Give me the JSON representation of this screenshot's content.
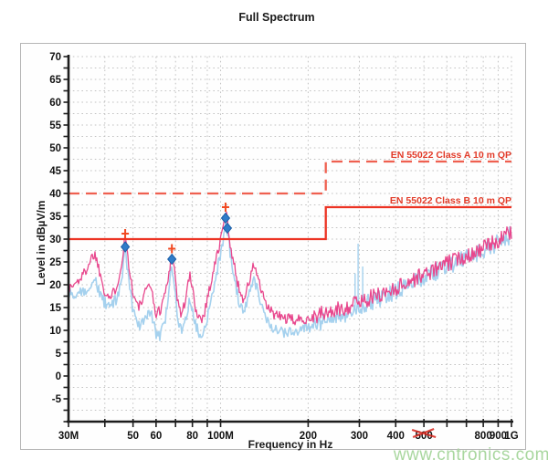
{
  "title": "Full Spectrum",
  "watermark": "www.cntronics.com",
  "colors": {
    "trace_pink": "#e8478d",
    "trace_blue": "#a5d1ee",
    "limit_solid": "#ec3323",
    "limit_dashed": "#ef6050",
    "annotation": "#e23a28",
    "marker_cross": "#f14a22",
    "marker_diamond": "#2f7cc9",
    "grid": "#c2c2c2",
    "axis": "#1c1c1c",
    "tick_text": "#111111",
    "scribble": "#d8251b",
    "watermark": "#a9d79f"
  },
  "chart_data": {
    "type": "line",
    "title": "Full Spectrum",
    "xlabel": "Frequency in Hz",
    "ylabel": "Level in dBµV/m",
    "x_scale": "log",
    "x_range_mhz": [
      30,
      1000
    ],
    "ylim": [
      -10,
      70
    ],
    "y_label_step": 5,
    "y_minor_step": 2.5,
    "grid": "dotted",
    "legend_position": "none",
    "x_ticks_mhz": [
      30,
      40,
      50,
      60,
      70,
      80,
      90,
      100,
      200,
      300,
      400,
      500,
      600,
      700,
      800,
      900,
      1000
    ],
    "x_tick_labels": [
      {
        "mhz": 30,
        "label": "30M"
      },
      {
        "mhz": 50,
        "label": "50"
      },
      {
        "mhz": 60,
        "label": "60"
      },
      {
        "mhz": 80,
        "label": "80"
      },
      {
        "mhz": 100,
        "label": "100M"
      },
      {
        "mhz": 200,
        "label": "200"
      },
      {
        "mhz": 300,
        "label": "300"
      },
      {
        "mhz": 400,
        "label": "400"
      },
      {
        "mhz": 500,
        "label": "500",
        "red_scribble": true
      },
      {
        "mhz": 800,
        "label": "800"
      },
      {
        "mhz": 900,
        "label": "900"
      },
      {
        "mhz": 1000,
        "label": "1G"
      }
    ],
    "limit_lines": [
      {
        "label": "EN 55022 Class A 10 m QP",
        "style": "dashed",
        "points_mhz_db": [
          [
            30,
            40
          ],
          [
            230,
            40
          ],
          [
            230,
            47
          ],
          [
            1000,
            47
          ]
        ]
      },
      {
        "label": "EN 55022 Class B 10 m QP",
        "style": "solid",
        "points_mhz_db": [
          [
            30,
            30
          ],
          [
            230,
            30
          ],
          [
            230,
            37
          ],
          [
            1000,
            37
          ]
        ]
      }
    ],
    "series": [
      {
        "name": "peak-trace-blue",
        "jitter_db": 1.3,
        "points_mhz_db": [
          [
            30,
            18
          ],
          [
            32,
            17.5
          ],
          [
            34,
            18.5
          ],
          [
            36,
            20.5
          ],
          [
            37,
            21
          ],
          [
            38,
            19
          ],
          [
            40,
            16
          ],
          [
            42,
            15
          ],
          [
            44,
            17
          ],
          [
            45.5,
            20
          ],
          [
            47,
            27.8
          ],
          [
            48.5,
            20
          ],
          [
            50,
            14
          ],
          [
            52,
            11
          ],
          [
            54,
            12
          ],
          [
            56,
            13.5
          ],
          [
            57,
            14.5
          ],
          [
            58.5,
            12
          ],
          [
            60,
            9.5
          ],
          [
            62,
            9
          ],
          [
            64,
            11.5
          ],
          [
            66,
            16
          ],
          [
            68,
            25
          ],
          [
            69.5,
            19
          ],
          [
            71,
            13
          ],
          [
            73,
            10
          ],
          [
            75,
            11.5
          ],
          [
            77,
            14.5
          ],
          [
            78.5,
            17
          ],
          [
            80,
            15
          ],
          [
            82,
            11.5
          ],
          [
            84,
            9.5
          ],
          [
            86,
            9
          ],
          [
            88,
            10.5
          ],
          [
            90,
            13
          ],
          [
            93,
            17
          ],
          [
            96,
            21.5
          ],
          [
            99,
            25.5
          ],
          [
            102,
            29.5
          ],
          [
            104,
            34.2
          ],
          [
            106,
            31
          ],
          [
            108,
            27
          ],
          [
            110,
            24
          ],
          [
            113,
            19.5
          ],
          [
            116,
            16
          ],
          [
            119,
            14
          ],
          [
            122,
            15
          ],
          [
            126,
            18
          ],
          [
            130,
            21.5
          ],
          [
            134,
            19
          ],
          [
            138,
            15.5
          ],
          [
            142,
            13
          ],
          [
            147,
            11.5
          ],
          [
            153,
            10.5
          ],
          [
            160,
            10
          ],
          [
            170,
            9.5
          ],
          [
            180,
            9.5
          ],
          [
            190,
            10
          ],
          [
            200,
            10.8
          ],
          [
            212,
            11.5
          ],
          [
            225,
            12
          ],
          [
            240,
            12.6
          ],
          [
            255,
            13.2
          ],
          [
            270,
            13.8
          ],
          [
            285,
            14.6
          ],
          [
            300,
            15.3
          ],
          [
            315,
            15.9
          ],
          [
            330,
            16.4
          ],
          [
            350,
            17
          ],
          [
            370,
            17.6
          ],
          [
            390,
            18.3
          ],
          [
            410,
            18.9
          ],
          [
            430,
            19.5
          ],
          [
            455,
            20.3
          ],
          [
            480,
            21.1
          ],
          [
            510,
            21.9
          ],
          [
            540,
            22.6
          ],
          [
            570,
            23.4
          ],
          [
            600,
            24
          ],
          [
            640,
            24.8
          ],
          [
            680,
            25.5
          ],
          [
            720,
            26.2
          ],
          [
            760,
            26.9
          ],
          [
            800,
            27.5
          ],
          [
            840,
            28.2
          ],
          [
            880,
            28.9
          ],
          [
            920,
            29.6
          ],
          [
            960,
            30.3
          ],
          [
            1000,
            31
          ]
        ],
        "spikes_mhz_db": [
          [
            290,
            22.5
          ],
          [
            297,
            29
          ],
          [
            308,
            24
          ]
        ]
      },
      {
        "name": "qp-trace-pink",
        "jitter_db": 1.2,
        "points_mhz_db": [
          [
            30,
            19
          ],
          [
            32,
            20.5
          ],
          [
            34,
            22.5
          ],
          [
            36,
            26
          ],
          [
            37,
            26.8
          ],
          [
            38,
            24
          ],
          [
            40,
            18.5
          ],
          [
            42,
            17
          ],
          [
            44,
            20
          ],
          [
            45.5,
            24
          ],
          [
            47,
            30.8
          ],
          [
            48.5,
            24
          ],
          [
            50,
            18
          ],
          [
            52,
            15
          ],
          [
            54,
            16.5
          ],
          [
            56,
            19.5
          ],
          [
            57,
            21
          ],
          [
            58.5,
            17
          ],
          [
            60,
            13.5
          ],
          [
            62,
            14.5
          ],
          [
            64,
            17.5
          ],
          [
            66,
            21
          ],
          [
            68,
            27.5
          ],
          [
            69.5,
            23
          ],
          [
            71,
            17
          ],
          [
            73,
            13.5
          ],
          [
            75,
            15.5
          ],
          [
            77,
            19.5
          ],
          [
            78.5,
            22
          ],
          [
            80,
            19
          ],
          [
            82,
            15
          ],
          [
            84,
            13
          ],
          [
            86,
            12.5
          ],
          [
            88,
            14
          ],
          [
            90,
            17
          ],
          [
            93,
            21
          ],
          [
            96,
            25
          ],
          [
            99,
            28.5
          ],
          [
            102,
            32.5
          ],
          [
            104,
            36.4
          ],
          [
            106,
            33
          ],
          [
            108,
            29
          ],
          [
            110,
            26
          ],
          [
            113,
            22
          ],
          [
            116,
            19
          ],
          [
            119,
            17
          ],
          [
            122,
            18
          ],
          [
            126,
            21
          ],
          [
            130,
            24.5
          ],
          [
            134,
            22
          ],
          [
            138,
            18.5
          ],
          [
            142,
            16
          ],
          [
            147,
            14.5
          ],
          [
            153,
            13.5
          ],
          [
            160,
            13
          ],
          [
            170,
            12.5
          ],
          [
            180,
            12.2
          ],
          [
            190,
            12.3
          ],
          [
            200,
            12.8
          ],
          [
            212,
            13.2
          ],
          [
            225,
            13.6
          ],
          [
            240,
            14
          ],
          [
            255,
            14.5
          ],
          [
            270,
            15
          ],
          [
            285,
            15.8
          ],
          [
            300,
            16.3
          ],
          [
            315,
            16.8
          ],
          [
            330,
            17.2
          ],
          [
            350,
            17.8
          ],
          [
            370,
            18.4
          ],
          [
            390,
            19
          ],
          [
            410,
            19.6
          ],
          [
            430,
            20.2
          ],
          [
            455,
            21
          ],
          [
            480,
            21.8
          ],
          [
            510,
            22.5
          ],
          [
            540,
            23.2
          ],
          [
            570,
            24
          ],
          [
            600,
            24.6
          ],
          [
            640,
            25.4
          ],
          [
            680,
            26.1
          ],
          [
            720,
            26.8
          ],
          [
            760,
            27.4
          ],
          [
            800,
            28
          ],
          [
            840,
            28.7
          ],
          [
            880,
            29.4
          ],
          [
            920,
            30.1
          ],
          [
            960,
            30.8
          ],
          [
            1000,
            31.5
          ]
        ],
        "spikes_mhz_db": []
      }
    ],
    "markers": [
      {
        "shape": "cross",
        "mhz": 47,
        "db": 31.2
      },
      {
        "shape": "diamond",
        "mhz": 47,
        "db": 28.3
      },
      {
        "shape": "cross",
        "mhz": 68,
        "db": 27.9
      },
      {
        "shape": "diamond",
        "mhz": 68,
        "db": 25.6
      },
      {
        "shape": "cross",
        "mhz": 104,
        "db": 37.0
      },
      {
        "shape": "diamond",
        "mhz": 104,
        "db": 34.6
      },
      {
        "shape": "diamond",
        "mhz": 105.5,
        "db": 32.4
      }
    ]
  }
}
